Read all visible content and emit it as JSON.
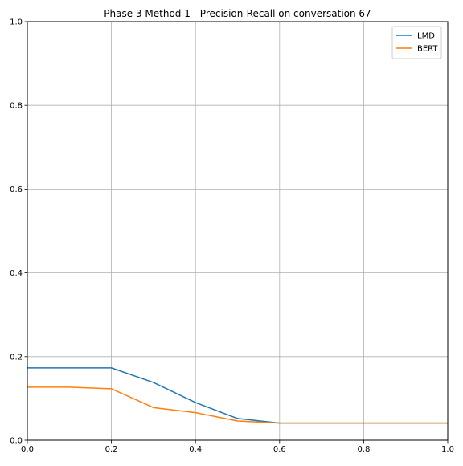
{
  "chart_data": {
    "type": "line",
    "title": "Phase 3 Method 1 - Precision-Recall on conversation 67",
    "xlabel": "",
    "ylabel": "",
    "xlim": [
      0,
      1
    ],
    "ylim": [
      0,
      1
    ],
    "x_ticks": [
      "0.0",
      "0.2",
      "0.4",
      "0.6",
      "0.8",
      "1.0"
    ],
    "y_ticks": [
      "0.0",
      "0.2",
      "0.4",
      "0.6",
      "0.8",
      "1.0"
    ],
    "grid": true,
    "legend_position": "top-right",
    "x": [
      0.0,
      0.1,
      0.2,
      0.3,
      0.4,
      0.5,
      0.6,
      0.7,
      0.8,
      0.9,
      1.0
    ],
    "series": [
      {
        "name": "LMD",
        "color": "#1f77b4",
        "values": [
          0.173,
          0.173,
          0.173,
          0.138,
          0.09,
          0.052,
          0.041,
          0.041,
          0.041,
          0.041,
          0.041
        ]
      },
      {
        "name": "BERT",
        "color": "#ff7f0e",
        "values": [
          0.127,
          0.127,
          0.123,
          0.078,
          0.066,
          0.046,
          0.041,
          0.041,
          0.041,
          0.041,
          0.041
        ]
      }
    ]
  }
}
